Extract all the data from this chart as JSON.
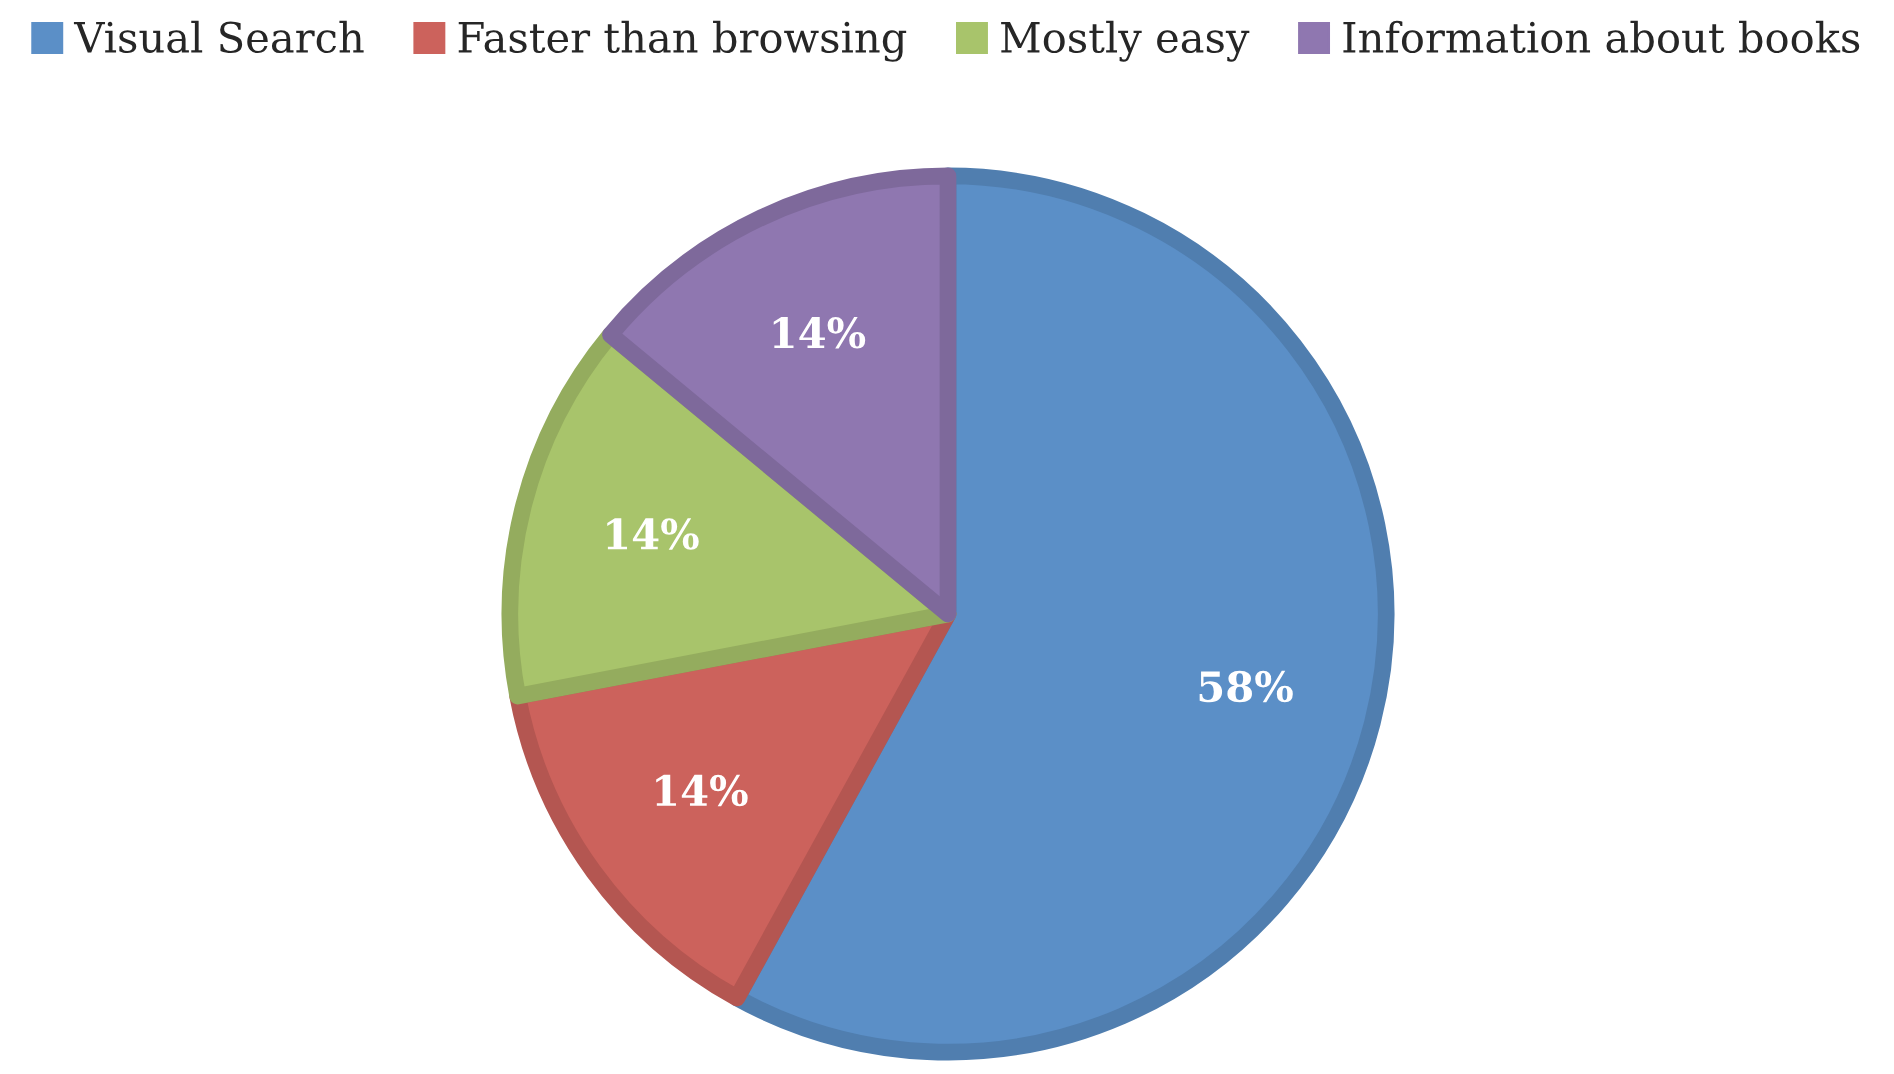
{
  "chart_data": {
    "type": "pie",
    "categories": [
      "Visual Search",
      "Faster than browsing",
      "Mostly easy",
      "Information about books"
    ],
    "values": [
      58,
      14,
      14,
      14
    ],
    "colors": [
      "#5b8fc7",
      "#cc625c",
      "#a8c46b",
      "#8f77b0"
    ],
    "value_labels": [
      "58%",
      "14%",
      "14%",
      "14%"
    ],
    "legend": "top"
  }
}
